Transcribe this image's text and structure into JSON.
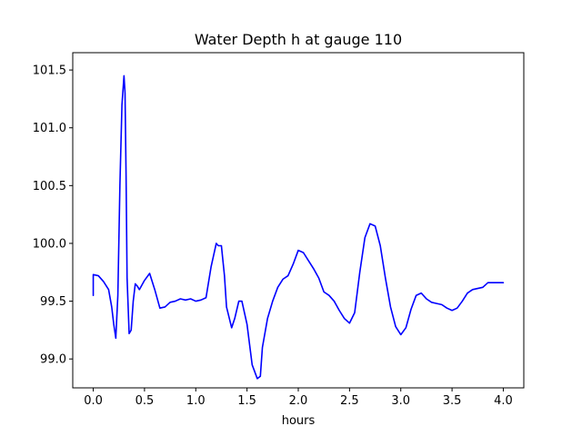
{
  "chart_data": {
    "type": "line",
    "title": "Water Depth h at gauge 110",
    "xlabel": "hours",
    "ylabel": "",
    "xlim": [
      -0.2,
      4.2
    ],
    "ylim": [
      98.75,
      101.65
    ],
    "xticks": [
      0.0,
      0.5,
      1.0,
      1.5,
      2.0,
      2.5,
      3.0,
      3.5,
      4.0
    ],
    "xtick_labels": [
      "0.0",
      "0.5",
      "1.0",
      "1.5",
      "2.0",
      "2.5",
      "3.0",
      "3.5",
      "4.0"
    ],
    "yticks": [
      99.0,
      99.5,
      100.0,
      100.5,
      101.0,
      101.5
    ],
    "ytick_labels": [
      "99.0",
      "99.5",
      "100.0",
      "100.5",
      "101.0",
      "101.5"
    ],
    "grid": false,
    "colors": {
      "line": "#0000ff",
      "axes": "#000000",
      "background": "#ffffff"
    },
    "series": [
      {
        "x": [
          0.0,
          0.0,
          0.05,
          0.1,
          0.15,
          0.18,
          0.2,
          0.22,
          0.24,
          0.26,
          0.28,
          0.3,
          0.31,
          0.32,
          0.33,
          0.35,
          0.37,
          0.39,
          0.41,
          0.43,
          0.45,
          0.5,
          0.55,
          0.6,
          0.65,
          0.7,
          0.75,
          0.8,
          0.85,
          0.9,
          0.95,
          1.0,
          1.05,
          1.1,
          1.15,
          1.2,
          1.22,
          1.25,
          1.28,
          1.3,
          1.35,
          1.38,
          1.42,
          1.45,
          1.5,
          1.55,
          1.6,
          1.63,
          1.65,
          1.7,
          1.75,
          1.8,
          1.85,
          1.9,
          1.95,
          2.0,
          2.05,
          2.1,
          2.15,
          2.2,
          2.25,
          2.3,
          2.35,
          2.4,
          2.45,
          2.5,
          2.55,
          2.6,
          2.65,
          2.7,
          2.75,
          2.8,
          2.85,
          2.9,
          2.95,
          3.0,
          3.05,
          3.1,
          3.15,
          3.2,
          3.25,
          3.3,
          3.35,
          3.4,
          3.45,
          3.5,
          3.55,
          3.6,
          3.65,
          3.7,
          3.75,
          3.8,
          3.85,
          3.9,
          3.95,
          4.0
        ],
        "values": [
          99.55,
          99.73,
          99.72,
          99.67,
          99.6,
          99.45,
          99.3,
          99.18,
          99.55,
          100.5,
          101.2,
          101.45,
          101.3,
          100.6,
          99.7,
          99.22,
          99.25,
          99.5,
          99.65,
          99.63,
          99.6,
          99.68,
          99.74,
          99.6,
          99.44,
          99.45,
          99.49,
          99.5,
          99.52,
          99.51,
          99.52,
          99.5,
          99.51,
          99.53,
          99.8,
          100.0,
          99.98,
          99.98,
          99.72,
          99.45,
          99.27,
          99.35,
          99.5,
          99.5,
          99.3,
          98.95,
          98.83,
          98.85,
          99.1,
          99.35,
          99.5,
          99.62,
          99.69,
          99.72,
          99.82,
          99.94,
          99.92,
          99.85,
          99.78,
          99.7,
          99.58,
          99.55,
          99.5,
          99.42,
          99.35,
          99.31,
          99.4,
          99.75,
          100.05,
          100.17,
          100.15,
          99.98,
          99.7,
          99.45,
          99.28,
          99.21,
          99.27,
          99.43,
          99.55,
          99.57,
          99.52,
          99.49,
          99.48,
          99.47,
          99.44,
          99.42,
          99.44,
          99.5,
          99.57,
          99.6,
          99.61,
          99.62,
          99.66,
          99.66,
          99.66,
          99.66
        ]
      }
    ]
  }
}
